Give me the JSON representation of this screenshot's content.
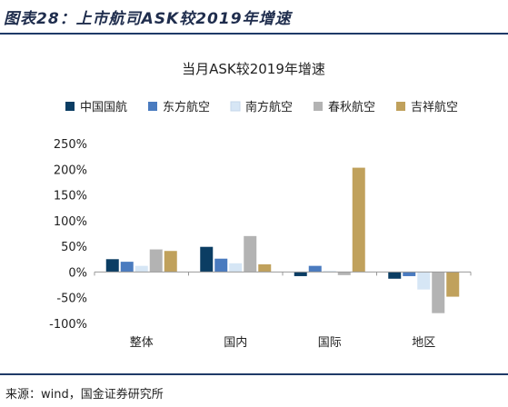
{
  "figure_title": "图表28：上市航司ASK较2019年增速",
  "source": "来源：wind，国金证券研究所",
  "chart_data": {
    "type": "bar",
    "title": "当月ASK较2019年增速",
    "categories": [
      "整体",
      "国内",
      "国际",
      "地区"
    ],
    "series": [
      {
        "name": "中国国航",
        "color": "#0b3d63",
        "values": [
          25,
          49,
          -8,
          -13
        ]
      },
      {
        "name": "东方航空",
        "color": "#4a7bbf",
        "values": [
          20,
          26,
          12,
          -8
        ]
      },
      {
        "name": "南方航空",
        "color": "#d6e6f5",
        "values": [
          12,
          17,
          2,
          -34
        ]
      },
      {
        "name": "春秋航空",
        "color": "#b3b3b3",
        "values": [
          44,
          70,
          -6,
          -80
        ]
      },
      {
        "name": "吉祥航空",
        "color": "#c0a15c",
        "values": [
          41,
          15,
          203,
          -48
        ]
      }
    ],
    "ylim": [
      -100,
      250
    ],
    "yticks": [
      250,
      200,
      150,
      100,
      50,
      0,
      -50,
      -100
    ],
    "ytick_labels": [
      "250%",
      "200%",
      "150%",
      "100%",
      "50%",
      "0%",
      "-50%",
      "-100%"
    ],
    "legend_position": "top",
    "grid": false
  }
}
